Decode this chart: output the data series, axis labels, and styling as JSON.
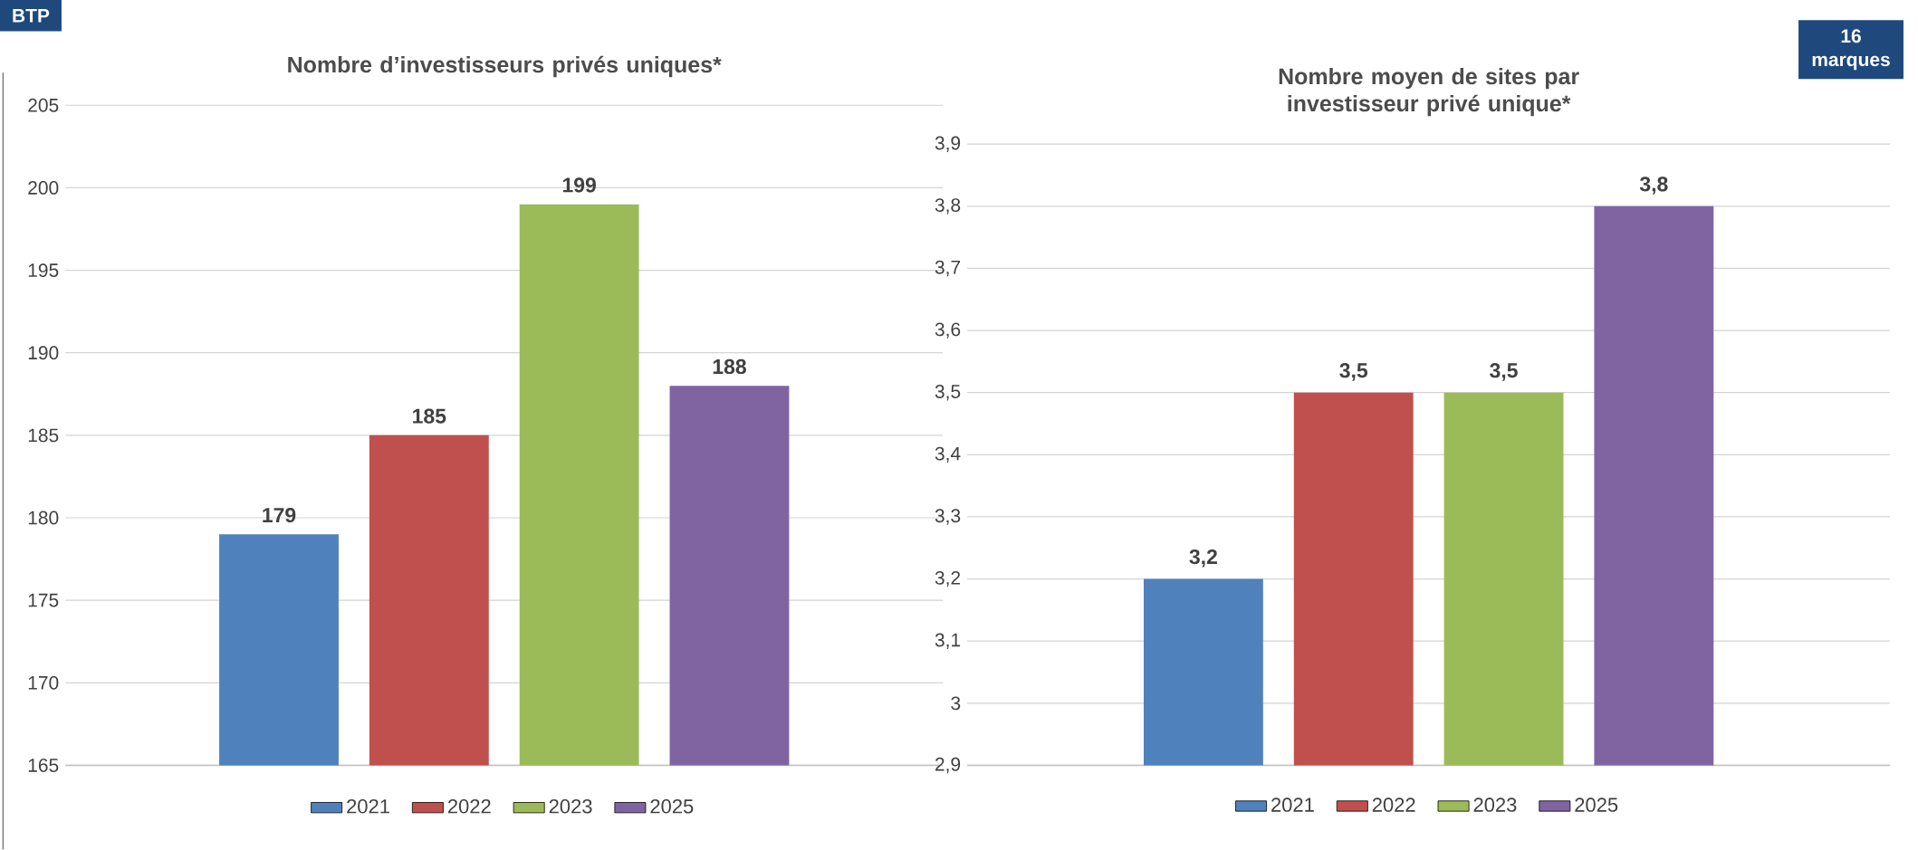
{
  "chart_data": [
    {
      "type": "bar",
      "title": "Nombre d’investisseurs privés uniques*",
      "categories": [
        null
      ],
      "series": [
        {
          "name": "2021",
          "color": "#4f81bd",
          "values": [
            179
          ],
          "value_labels": [
            "179"
          ]
        },
        {
          "name": "2022",
          "color": "#c0504d",
          "values": [
            185
          ],
          "value_labels": [
            "185"
          ]
        },
        {
          "name": "2023",
          "color": "#9bbb59",
          "values": [
            199
          ],
          "value_labels": [
            "199"
          ]
        },
        {
          "name": "2025",
          "color": "#8064a2",
          "values": [
            188
          ],
          "value_labels": [
            "188"
          ]
        }
      ],
      "ylim": [
        165,
        205
      ],
      "yticks": [
        165,
        170,
        175,
        180,
        185,
        190,
        195,
        200,
        205
      ],
      "grid": "y",
      "legend": "bottom",
      "annotations": [
        "BTP"
      ]
    },
    {
      "type": "bar",
      "title": "Nombre moyen de sites par investisseur privé unique*",
      "categories": [
        null
      ],
      "series": [
        {
          "name": "2021",
          "color": "#4f81bd",
          "values": [
            3.2
          ],
          "value_labels": [
            "3,2"
          ]
        },
        {
          "name": "2022",
          "color": "#c0504d",
          "values": [
            3.5
          ],
          "value_labels": [
            "3,5"
          ]
        },
        {
          "name": "2023",
          "color": "#9bbb59",
          "values": [
            3.5
          ],
          "value_labels": [
            "3,5"
          ]
        },
        {
          "name": "2025",
          "color": "#8064a2",
          "values": [
            3.8
          ],
          "value_labels": [
            "3,8"
          ]
        }
      ],
      "ylim": [
        2.9,
        3.9
      ],
      "yticks": [
        {
          "value": 2.9,
          "label": "2,9"
        },
        3,
        {
          "value": 3.1,
          "label": "3,1"
        },
        {
          "value": 3.2,
          "label": "3,2"
        },
        {
          "value": 3.3,
          "label": "3,3"
        },
        {
          "value": 3.4,
          "label": "3,4"
        },
        {
          "value": 3.5,
          "label": "3,5"
        },
        {
          "value": 3.6,
          "label": "3,6"
        },
        {
          "value": 3.7,
          "label": "3,7"
        },
        {
          "value": 3.8,
          "label": "3,8"
        },
        {
          "value": 3.9,
          "label": "3,9"
        }
      ],
      "grid": "y",
      "legend": "bottom",
      "annotations": [
        "16 marques"
      ]
    }
  ]
}
